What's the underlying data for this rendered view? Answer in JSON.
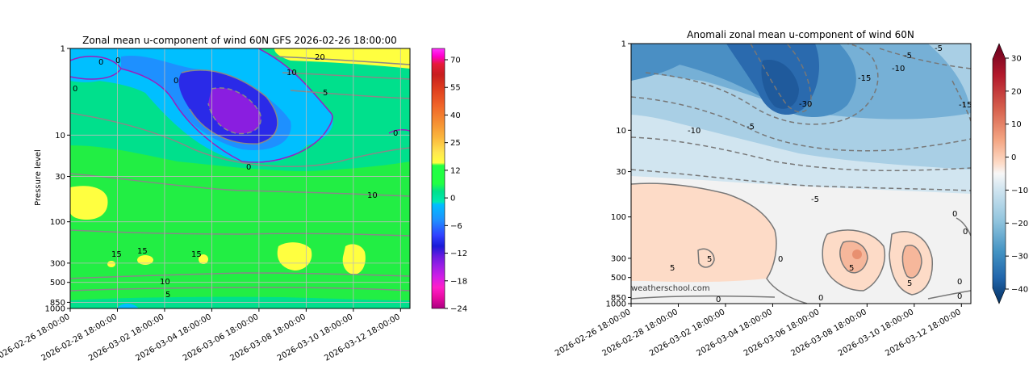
{
  "chart_data": [
    {
      "type": "contour",
      "title": "Zonal mean u-component of wind 60N GFS 2026-02-26 18:00:00",
      "xlabel": "",
      "ylabel": "Pressure level",
      "x_tick_labels": [
        "2026-02-26 18:00:00",
        "2026-02-28 18:00:00",
        "2026-03-02 18:00:00",
        "2026-03-04 18:00:00",
        "2026-03-06 18:00:00",
        "2026-03-08 18:00:00",
        "2026-03-10 18:00:00",
        "2026-03-12 18:00:00"
      ],
      "y_tick_labels": [
        "1",
        "10",
        "30",
        "100",
        "300",
        "500",
        "850",
        "1000"
      ],
      "y_tick_values": [
        1,
        10,
        30,
        100,
        300,
        500,
        850,
        1000
      ],
      "ylim": [
        1000,
        1
      ],
      "y_scale": "log",
      "grid": true,
      "colorbar_ticks": [
        70,
        55,
        40,
        25,
        12,
        0,
        -6,
        -12,
        -18,
        -24
      ],
      "contour_labels": [
        "0",
        "0",
        "0",
        "0",
        "0",
        "20",
        "10",
        "5",
        "0",
        "10",
        "15",
        "15",
        "15",
        "10",
        "5"
      ]
    },
    {
      "type": "contour",
      "title": "Anomali zonal mean u-component of wind 60N",
      "xlabel": "",
      "ylabel": "",
      "x_tick_labels": [
        "2026-02-26 18:00:00",
        "2026-02-28 18:00:00",
        "2026-03-02 18:00:00",
        "2026-03-04 18:00:00",
        "2026-03-06 18:00:00",
        "2026-03-08 18:00:00",
        "2026-03-10 18:00:00",
        "2026-03-12 18:00:00"
      ],
      "y_tick_labels": [
        "1",
        "10",
        "30",
        "100",
        "300",
        "500",
        "850",
        "1000"
      ],
      "y_tick_values": [
        1,
        10,
        30,
        100,
        300,
        500,
        850,
        1000
      ],
      "ylim": [
        1000,
        1
      ],
      "y_scale": "log",
      "grid": false,
      "colorbar_ticks": [
        30,
        20,
        10,
        0,
        -10,
        -20,
        -30,
        -40
      ],
      "contour_labels": [
        "-5",
        "-5",
        "-10",
        "-15",
        "-15",
        "-10",
        "-5",
        "-5",
        "-30",
        "5",
        "0",
        "0",
        "5",
        "5",
        "5",
        "0",
        "0",
        "0",
        "0",
        "0"
      ],
      "watermark": "weatherschool.com"
    }
  ]
}
